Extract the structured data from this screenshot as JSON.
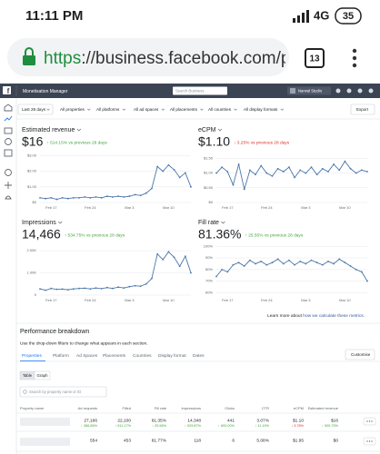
{
  "status_bar": {
    "time": "11:11 PM",
    "network": "4G",
    "battery": "35"
  },
  "browser": {
    "url_scheme": "https",
    "url_rest": "://business.facebook.com/pu",
    "tab_count": "13"
  },
  "topbar": {
    "app": "Monetisation Manager",
    "search": "Search Business",
    "account": "Narwal Studio"
  },
  "filters": [
    "Last 28 days",
    "All properties",
    "All platforms",
    "All ad spaces",
    "All placements",
    "All countries",
    "All display formats"
  ],
  "export": "Export",
  "charts": [
    {
      "type": "line",
      "title": "Estimated revenue",
      "value": "$16",
      "change": "↑ 514.15% vs previous 28 days",
      "change_color": "#42a33a",
      "color": "#4a76a8",
      "categories": [
        null,
        null,
        "Feb 17",
        null,
        null,
        null,
        null,
        null,
        null,
        "Feb 24",
        null,
        null,
        null,
        null,
        null,
        null,
        "Mar 3",
        null,
        null,
        null,
        null,
        null,
        null,
        "Mar 10",
        null,
        null,
        null,
        null
      ],
      "values": [
        0.3,
        0.25,
        0.3,
        0.2,
        0.3,
        0.25,
        0.3,
        0.3,
        0.35,
        0.3,
        0.35,
        0.3,
        0.4,
        0.35,
        0.4,
        0.35,
        0.4,
        0.5,
        0.45,
        0.6,
        0.9,
        2.3,
        2.0,
        2.4,
        2.1,
        1.6,
        1.9,
        1.0
      ],
      "ylim": [
        0,
        3.2
      ],
      "yticks": [
        {
          "value": 0,
          "label": "$0"
        },
        {
          "value": 1,
          "label": "$1.00"
        },
        {
          "value": 2,
          "label": "$2.00"
        },
        {
          "value": 3,
          "label": "$3.00"
        }
      ]
    },
    {
      "type": "line",
      "title": "eCPM",
      "value": "$1.10",
      "change": "↓ 3.25% vs previous 28 days",
      "change_color": "#d93025",
      "color": "#4a76a8",
      "categories": [
        null,
        null,
        "Feb 17",
        null,
        null,
        null,
        null,
        null,
        null,
        "Feb 24",
        null,
        null,
        null,
        null,
        null,
        null,
        "Mar 3",
        null,
        null,
        null,
        null,
        null,
        null,
        "Mar 10",
        null,
        null,
        null,
        null
      ],
      "values": [
        1.0,
        1.2,
        1.05,
        0.6,
        1.3,
        0.45,
        1.1,
        0.95,
        1.25,
        1.0,
        0.9,
        1.15,
        1.05,
        1.2,
        0.85,
        1.1,
        1.0,
        1.2,
        0.95,
        1.15,
        1.05,
        1.3,
        1.1,
        1.4,
        1.15,
        1.0,
        1.1,
        1.05
      ],
      "ylim": [
        0,
        1.7
      ],
      "yticks": [
        {
          "value": 0,
          "label": "$0"
        },
        {
          "value": 0.5,
          "label": "$0.50"
        },
        {
          "value": 1,
          "label": "$1.00"
        },
        {
          "value": 1.5,
          "label": "$1.50"
        }
      ]
    },
    {
      "type": "line",
      "title": "Impressions",
      "value": "14,466",
      "change": "↑ 534.75% vs previous 28 days",
      "change_color": "#42a33a",
      "color": "#4a76a8",
      "categories": [
        null,
        null,
        "Feb 17",
        null,
        null,
        null,
        null,
        null,
        null,
        "Feb 24",
        null,
        null,
        null,
        null,
        null,
        null,
        "Mar 3",
        null,
        null,
        null,
        null,
        null,
        null,
        "Mar 10",
        null,
        null,
        null,
        null
      ],
      "values": [
        280,
        220,
        300,
        260,
        270,
        240,
        280,
        300,
        310,
        280,
        320,
        290,
        340,
        300,
        360,
        320,
        380,
        420,
        400,
        500,
        750,
        1850,
        1600,
        1950,
        1700,
        1300,
        1750,
        1000
      ],
      "ylim": [
        0,
        2250
      ],
      "yticks": [
        {
          "value": 0,
          "label": "0"
        },
        {
          "value": 1000,
          "label": "1.00K"
        },
        {
          "value": 2000,
          "label": "2.00K"
        }
      ]
    },
    {
      "type": "line",
      "title": "Fill rate",
      "value": "81.36%",
      "change": "↑ 25.55% vs previous 28 days",
      "change_color": "#42a33a",
      "color": "#4a76a8",
      "categories": [
        null,
        null,
        "Feb 17",
        null,
        null,
        null,
        null,
        null,
        null,
        "Feb 24",
        null,
        null,
        null,
        null,
        null,
        null,
        "Mar 3",
        null,
        null,
        null,
        null,
        null,
        null,
        "Mar 10",
        null,
        null,
        null,
        null
      ],
      "values": [
        74,
        80,
        78,
        84,
        86,
        83,
        88,
        85,
        87,
        84,
        86,
        89,
        85,
        88,
        84,
        87,
        85,
        88,
        86,
        84,
        87,
        85,
        89,
        86,
        83,
        80,
        78,
        70
      ],
      "ylim": [
        58,
        101
      ],
      "yticks": [
        {
          "value": 60,
          "label": "60%"
        },
        {
          "value": 70,
          "label": "70%"
        },
        {
          "value": 80,
          "label": "80%"
        },
        {
          "value": 90,
          "label": "90%"
        },
        {
          "value": 100,
          "label": "100%"
        }
      ]
    }
  ],
  "learn_more": {
    "text": "Learn more about",
    "link": "how we calculate these metrics."
  },
  "breakdown": {
    "title": "Performance breakdown",
    "subtitle": "Use the drop-down filters to change what appears in each section.",
    "tabs": [
      "Properties",
      "Platform",
      "Ad Spaces",
      "Placements",
      "Countries",
      "Display format",
      "Dates"
    ],
    "customise": "Customise",
    "views": [
      "Table",
      "Graph"
    ],
    "search": "Search by property name or ID"
  },
  "table": {
    "columns": [
      "Property name",
      "Ad requests",
      "Filled",
      "Fill rate",
      "Impressions",
      "Clicks",
      "CTR",
      "eCPM",
      "Estimated revenue"
    ],
    "rows": [
      {
        "cells": [
          "27,166",
          "22,100",
          "81.35%",
          "14,348",
          "441",
          "3.07%",
          "$1.10",
          "$16"
        ],
        "changes": [
          "↑ 386.86%",
          "↑ 511.17%",
          "↑ 25.56%",
          "↑ 529.87%",
          "↑ 600.00%",
          "↑ 11.19%",
          "↓ 3.78%",
          "↑ 505.75%"
        ]
      },
      {
        "cells": [
          "554",
          "453",
          "81.77%",
          "118",
          "6",
          "5.08%",
          "$1.95",
          "$0"
        ]
      }
    ]
  }
}
